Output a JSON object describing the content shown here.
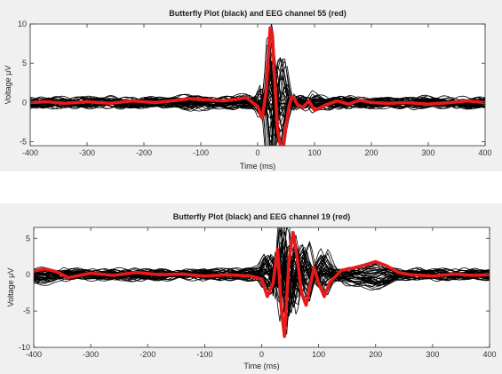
{
  "chart_data": [
    {
      "type": "line",
      "title": "Butterfly Plot (black) and EEG channel 55 (red)",
      "xlabel": "Time (ms)",
      "ylabel": "Voltage μV",
      "xlim": [
        -400,
        400
      ],
      "ylim": [
        -5.5,
        10
      ],
      "xticks": [
        -400,
        -300,
        -200,
        -100,
        0,
        100,
        200,
        300,
        400
      ],
      "yticks": [
        -5,
        0,
        5,
        10
      ],
      "grid": false,
      "colors": {
        "butterfly": "#000000",
        "highlight": "#e8191a"
      },
      "series": [
        {
          "x": [
            -400,
            -370,
            -340,
            -300,
            -260,
            -220,
            -180,
            -140,
            -120,
            -100,
            -60,
            -20,
            0,
            8,
            15,
            22,
            26,
            30,
            35,
            40,
            45,
            50,
            55,
            60,
            65,
            70,
            80,
            90,
            100,
            120,
            140,
            160,
            180,
            200,
            230,
            260,
            300,
            340,
            370,
            400
          ],
          "y": [
            0.0,
            0.1,
            -0.1,
            0.1,
            -0.1,
            0.2,
            0.0,
            0.3,
            0.5,
            0.4,
            0.2,
            0.6,
            -0.5,
            -2.0,
            1.5,
            9.5,
            8.5,
            3.0,
            -3.5,
            -5.5,
            -5.8,
            -3.0,
            -0.5,
            0.8,
            0.4,
            -0.3,
            -0.6,
            0.2,
            -1.0,
            -0.3,
            0.2,
            -0.2,
            0.3,
            0.0,
            -0.1,
            0.0,
            -0.2,
            0.0,
            0.2,
            0.0
          ]
        }
      ]
    },
    {
      "type": "line",
      "title": "Butterfly Plot (black) and EEG channel 19 (red)",
      "xlabel": "Time (ms)",
      "ylabel": "Voltage μV",
      "xlim": [
        -400,
        400
      ],
      "ylim": [
        -10,
        6.5
      ],
      "xticks": [
        -400,
        -300,
        -200,
        -100,
        0,
        100,
        200,
        300,
        400
      ],
      "yticks": [
        -10,
        -5,
        0,
        5
      ],
      "grid": false,
      "colors": {
        "butterfly": "#000000",
        "highlight": "#e8191a"
      },
      "series": [
        {
          "x": [
            -400,
            -380,
            -360,
            -340,
            -300,
            -260,
            -220,
            -180,
            -140,
            -100,
            -60,
            -20,
            0,
            10,
            20,
            28,
            35,
            40,
            48,
            55,
            62,
            70,
            78,
            85,
            92,
            100,
            110,
            120,
            140,
            160,
            180,
            200,
            220,
            240,
            260,
            300,
            340,
            370,
            400
          ],
          "y": [
            0.5,
            0.8,
            0.4,
            -0.4,
            0.2,
            -0.1,
            0.3,
            0.0,
            0.1,
            -0.2,
            0.0,
            -0.2,
            -0.6,
            -3.0,
            -1.2,
            3.5,
            -5.0,
            -8.5,
            2.0,
            5.8,
            2.5,
            -2.5,
            -4.2,
            -1.5,
            1.0,
            -1.2,
            -3.0,
            -1.0,
            0.6,
            0.9,
            1.3,
            1.8,
            1.2,
            0.3,
            0.0,
            -0.2,
            0.1,
            -0.1,
            0.0
          ]
        }
      ]
    }
  ]
}
